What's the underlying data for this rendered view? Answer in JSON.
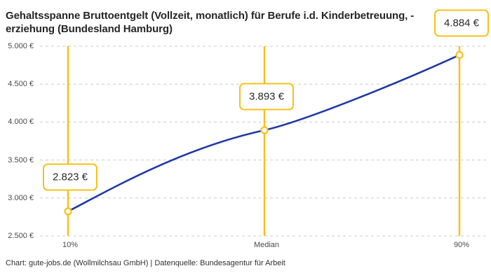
{
  "header": {
    "title": "Gehaltsspanne Bruttoentgelt (Vollzeit, monatlich) für Berufe i.d. Kinderbetreuung, -erziehung (Bundesland Hamburg)"
  },
  "footer": {
    "credit": "Chart: gute-jobs.de (Wollmilchsau GmbH) | Datenquelle: Bundesagentur für Arbeit"
  },
  "colors": {
    "accent_yellow": "#F7C019",
    "line_blue": "#1F3AA6",
    "grid_gray": "#CCCCCC",
    "title_text": "#262626",
    "tick_text": "#4A4A4A"
  },
  "chart_data": {
    "type": "line",
    "title": "Gehaltsspanne Bruttoentgelt (Vollzeit, monatlich) für Berufe i.d. Kinderbetreuung, -erziehung (Bundesland Hamburg)",
    "xlabel": "",
    "ylabel": "",
    "ylim": [
      2500,
      5000
    ],
    "grid": "horizontal-dashed",
    "legend": "none",
    "currency": "EUR",
    "x_categories": [
      "10%",
      "Median",
      "90%"
    ],
    "points": [
      {
        "category": "10%",
        "value": 2823,
        "label": "2.823 €"
      },
      {
        "category": "Median",
        "value": 3893,
        "label": "3.893 €"
      },
      {
        "category": "90%",
        "value": 4884,
        "label": "4.884 €"
      }
    ],
    "y_ticks": [
      {
        "value": 5000,
        "label": "5.000 €"
      },
      {
        "value": 4500,
        "label": "4.500 €"
      },
      {
        "value": 4000,
        "label": "4.000 €"
      },
      {
        "value": 3500,
        "label": "3.500 €"
      },
      {
        "value": 3000,
        "label": "3.000 €"
      },
      {
        "value": 2500,
        "label": "2.500 €"
      }
    ]
  }
}
